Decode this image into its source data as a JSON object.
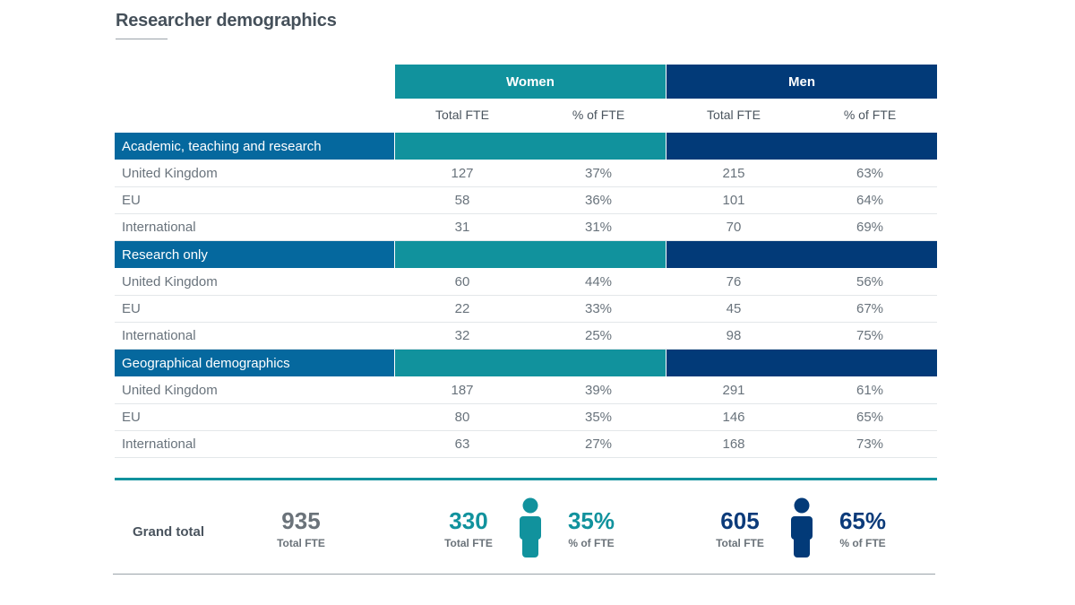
{
  "title": "Researcher demographics",
  "groups": {
    "women": "Women",
    "men": "Men"
  },
  "columns": {
    "total_fte": "Total FTE",
    "pct_fte": "% of FTE"
  },
  "sections": [
    {
      "label": "Academic, teaching and research",
      "rows": [
        {
          "label": "United Kingdom",
          "women_fte": "127",
          "women_pct": "37%",
          "men_fte": "215",
          "men_pct": "63%"
        },
        {
          "label": "EU",
          "women_fte": "58",
          "women_pct": "36%",
          "men_fte": "101",
          "men_pct": "64%"
        },
        {
          "label": "International",
          "women_fte": "31",
          "women_pct": "31%",
          "men_fte": "70",
          "men_pct": "69%"
        }
      ]
    },
    {
      "label": "Research only",
      "rows": [
        {
          "label": "United Kingdom",
          "women_fte": "60",
          "women_pct": "44%",
          "men_fte": "76",
          "men_pct": "56%"
        },
        {
          "label": "EU",
          "women_fte": "22",
          "women_pct": "33%",
          "men_fte": "45",
          "men_pct": "67%"
        },
        {
          "label": "International",
          "women_fte": "32",
          "women_pct": "25%",
          "men_fte": "98",
          "men_pct": "75%"
        }
      ]
    },
    {
      "label": "Geographical demographics",
      "rows": [
        {
          "label": "United Kingdom",
          "women_fte": "187",
          "women_pct": "39%",
          "men_fte": "291",
          "men_pct": "61%"
        },
        {
          "label": "EU",
          "women_fte": "80",
          "women_pct": "35%",
          "men_fte": "146",
          "men_pct": "65%"
        },
        {
          "label": "International",
          "women_fte": "63",
          "women_pct": "27%",
          "men_fte": "168",
          "men_pct": "73%"
        }
      ]
    }
  ],
  "grand_total": {
    "label": "Grand total",
    "total": "935",
    "total_caption": "Total FTE",
    "women_total": "330",
    "women_total_caption": "Total FTE",
    "women_pct": "35%",
    "women_pct_caption": "% of FTE",
    "men_total": "605",
    "men_total_caption": "Total FTE",
    "men_pct": "65%",
    "men_pct_caption": "% of FTE"
  },
  "icons": {
    "women": "person-icon",
    "men": "person-icon"
  },
  "colors": {
    "teal": "#11929d",
    "navy": "#023a78",
    "section_blue": "#05689e"
  }
}
